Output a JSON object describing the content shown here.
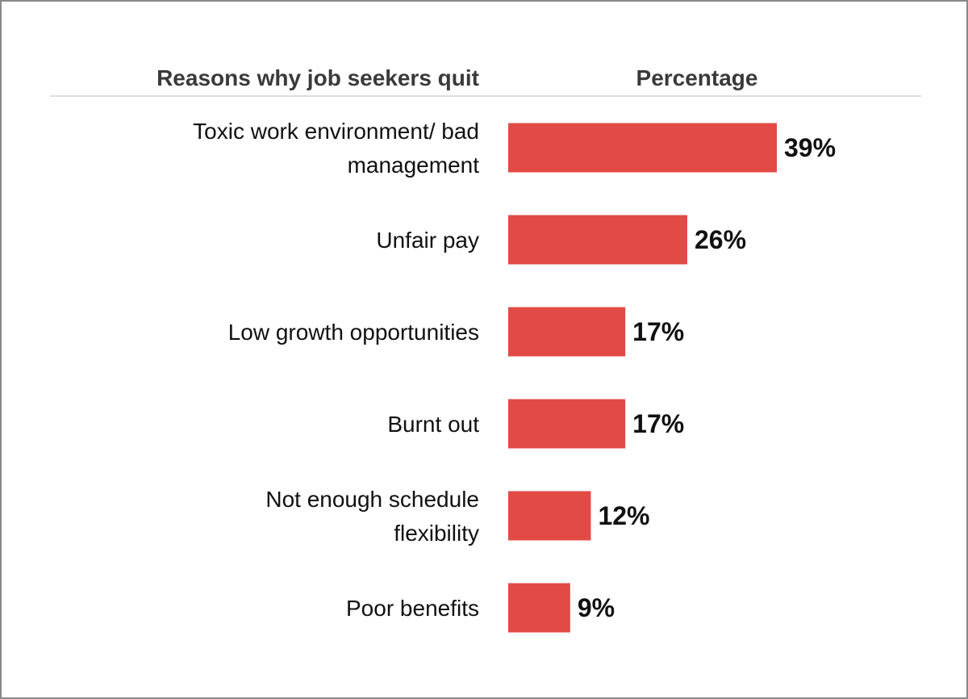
{
  "chart_data": {
    "type": "bar",
    "orientation": "horizontal",
    "column_headers": {
      "category": "Reasons why job seekers quit",
      "value": "Percentage"
    },
    "categories": [
      [
        "Toxic work environment/ bad",
        "management"
      ],
      [
        "Unfair pay"
      ],
      [
        "Low growth opportunities"
      ],
      [
        "Burnt out"
      ],
      [
        "Not enough schedule",
        "flexibility"
      ],
      [
        "Poor benefits"
      ]
    ],
    "values": [
      39,
      26,
      17,
      17,
      12,
      9
    ],
    "value_labels": [
      "39%",
      "26%",
      "17%",
      "17%",
      "12%",
      "9%"
    ],
    "unit": "%",
    "xlim": [
      0,
      39
    ],
    "grid": false,
    "legend": "none",
    "colors": {
      "bar": "#e24a45",
      "divider": "#d4d4d4",
      "frame": "#8a8a8a"
    }
  }
}
